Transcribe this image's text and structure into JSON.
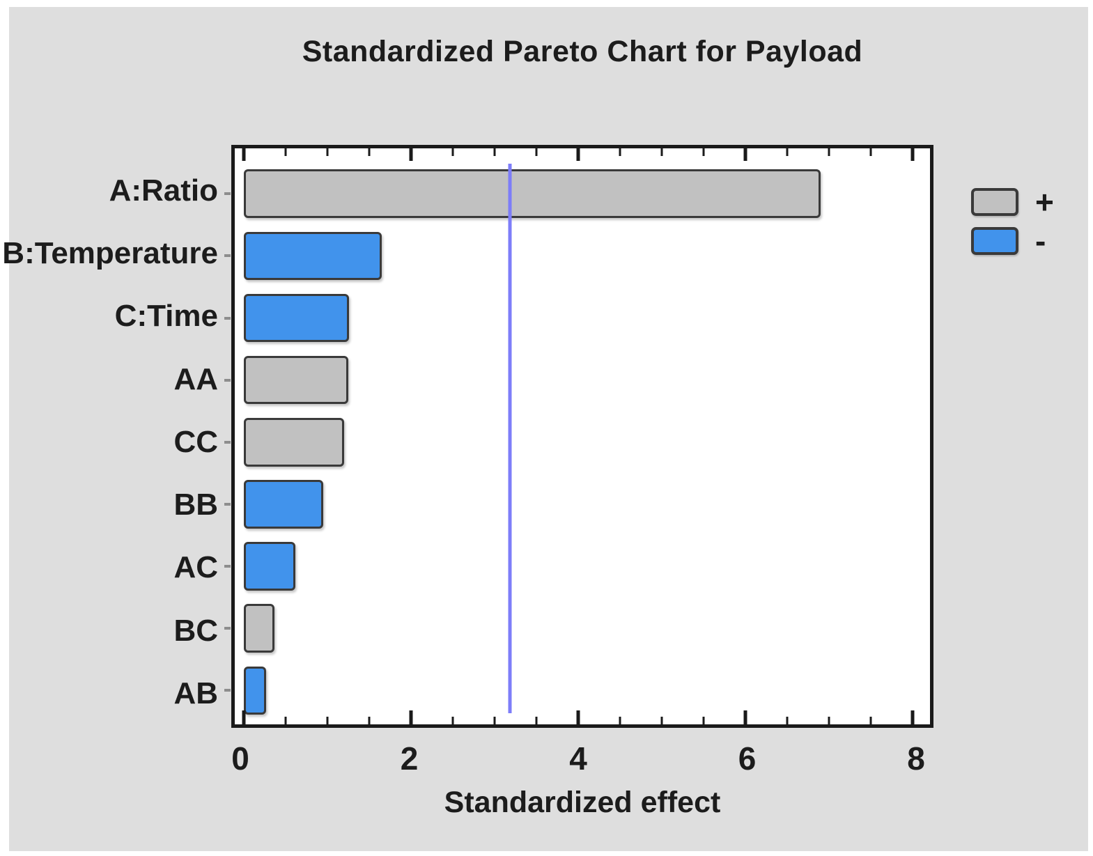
{
  "chart_data": {
    "type": "bar",
    "orientation": "horizontal",
    "title": "Standardized Pareto Chart for Payload",
    "xlabel": "Standardized effect",
    "categories": [
      "A:Ratio",
      "B:Temperature",
      "C:Time",
      "AA",
      "CC",
      "BB",
      "AC",
      "BC",
      "AB"
    ],
    "values": [
      6.9,
      1.65,
      1.26,
      1.25,
      1.2,
      0.95,
      0.62,
      0.37,
      0.27
    ],
    "signs": [
      "+",
      "-",
      "-",
      "+",
      "+",
      "-",
      "-",
      "+",
      "-"
    ],
    "xlim": [
      0,
      8
    ],
    "x_major_ticks": [
      0,
      2,
      4,
      6,
      8
    ],
    "x_minor_tick_step": 0.5,
    "grid": false,
    "reference_line": {
      "value": 3.18,
      "color": "#7d7df9"
    },
    "legend": [
      {
        "label": "+",
        "sign": "positive",
        "color": "#c1c1c1"
      },
      {
        "label": "-",
        "sign": "negative",
        "color": "#4193ec"
      }
    ],
    "legend_position": "right-top",
    "colors": {
      "positive": "#c1c1c1",
      "negative": "#4193ec",
      "bar_border": "#3a3a3a",
      "axis": "#1a1a1a",
      "background": "#dedede",
      "plot_background": "#ffffff",
      "text": "#1c1c1c"
    }
  }
}
